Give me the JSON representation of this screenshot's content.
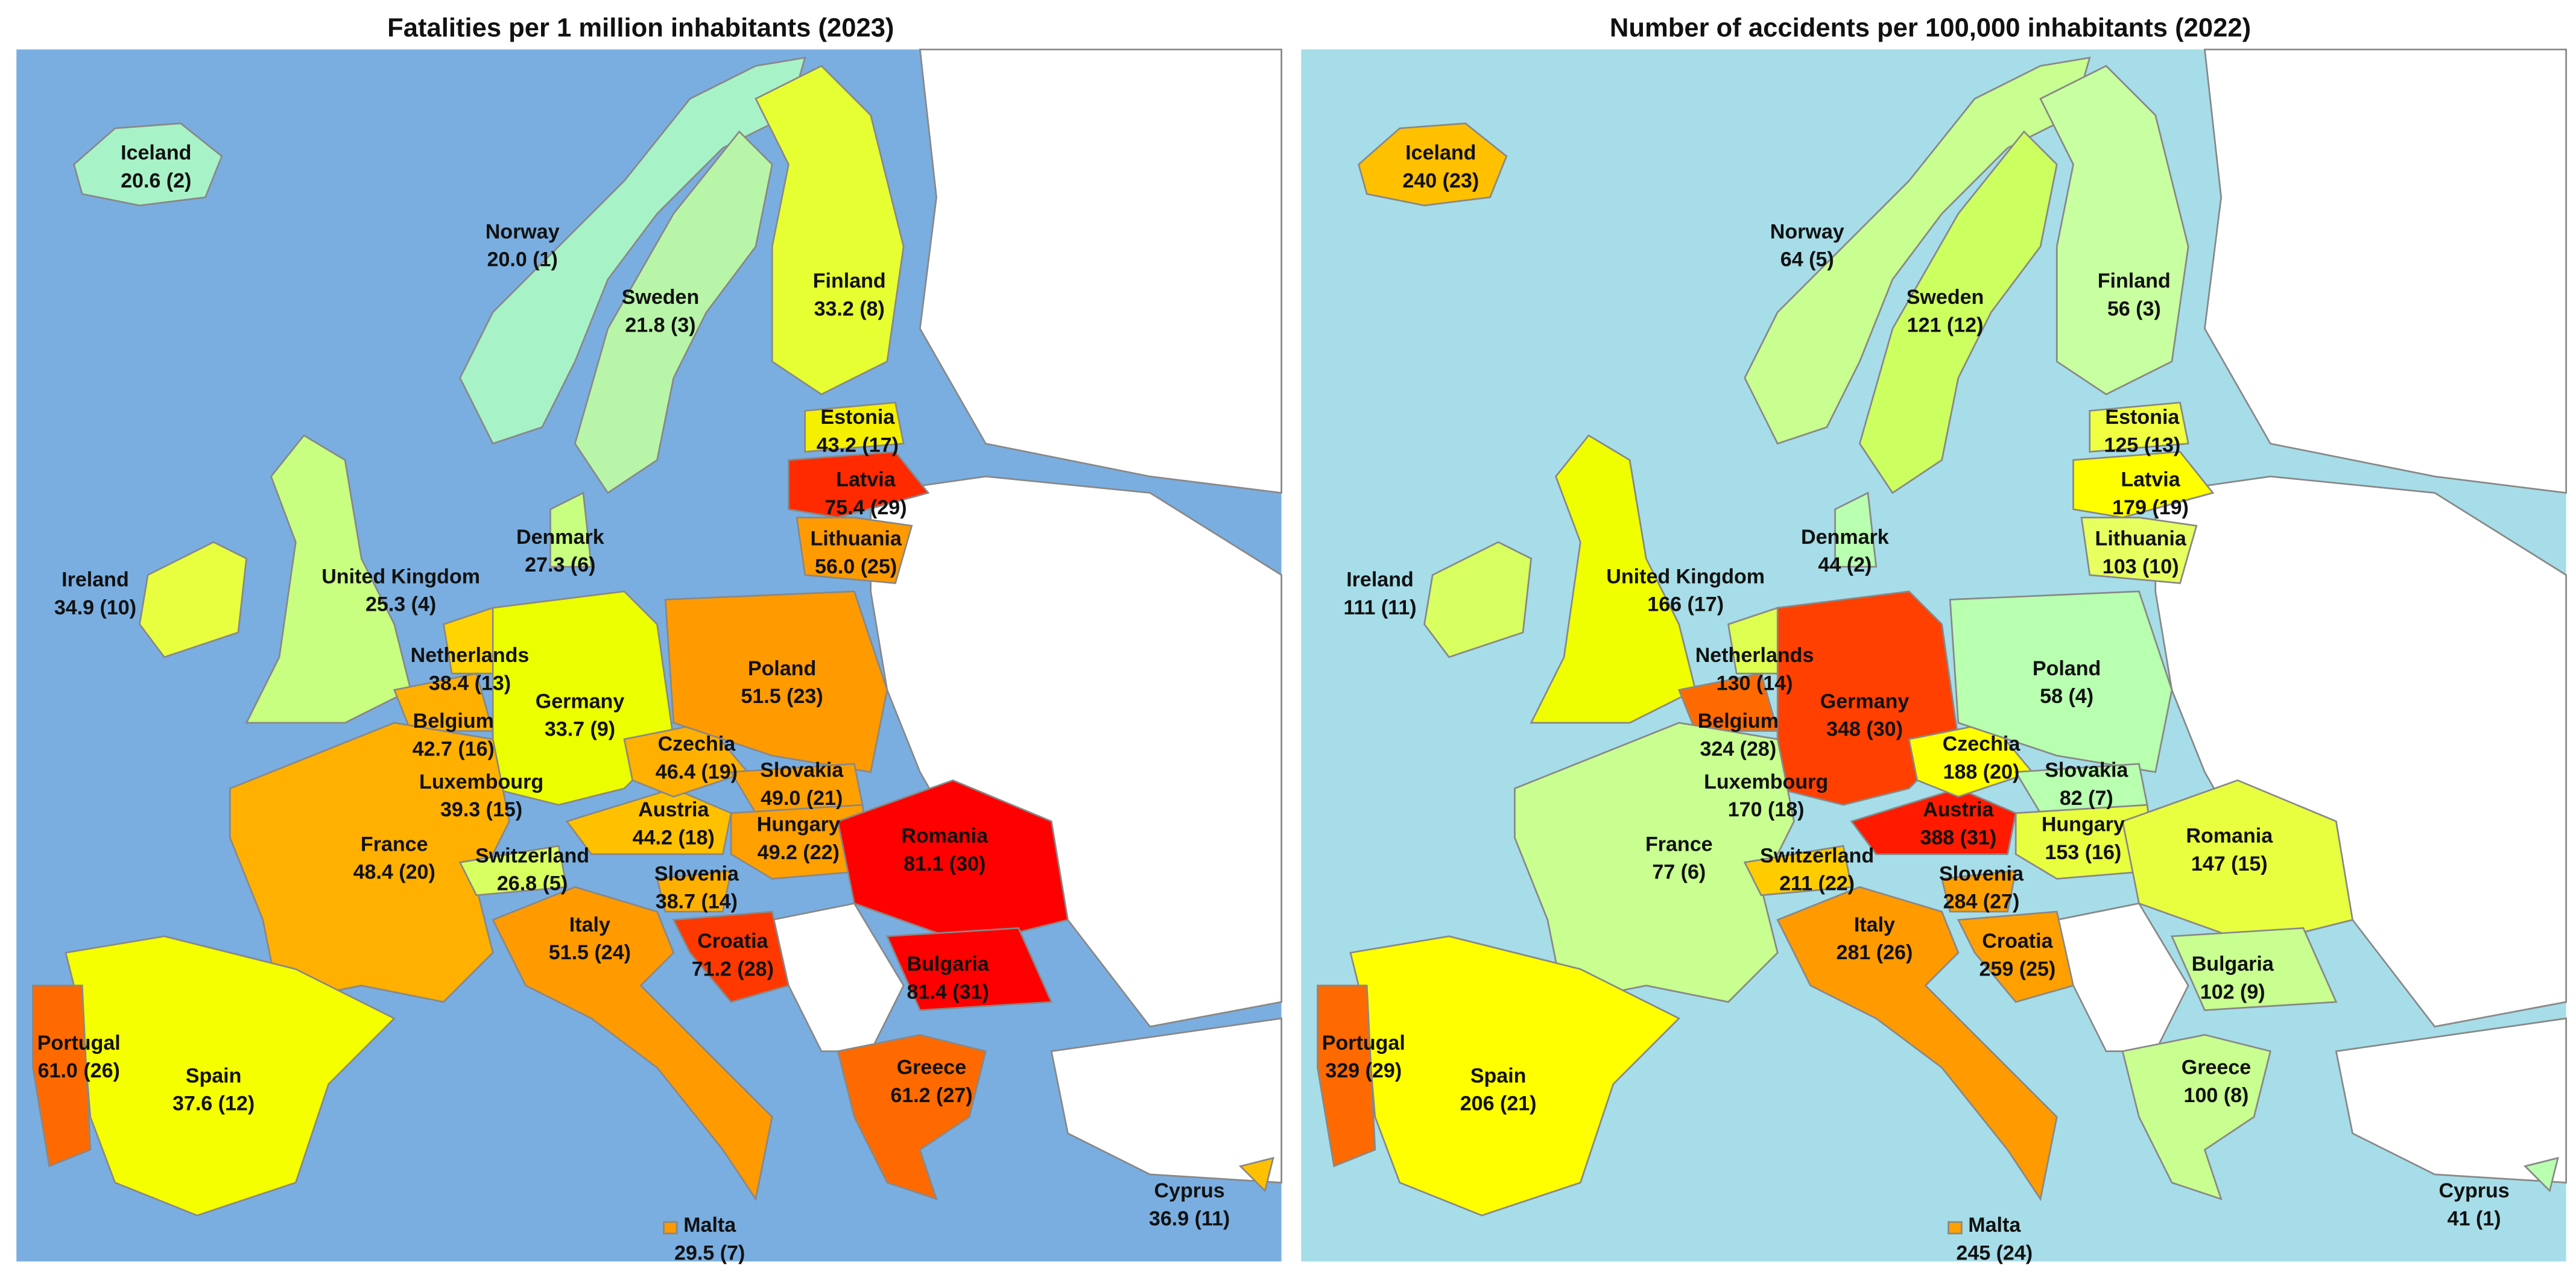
{
  "maps": [
    {
      "title": "Fatalities per 1 million inhabitants (2023)",
      "regions": [
        {
          "name": "Iceland",
          "value": "20.6 (2)",
          "color": "#a8f2c8"
        },
        {
          "name": "Norway",
          "value": "20.0 (1)",
          "color": "#a8f2c8"
        },
        {
          "name": "Sweden",
          "value": "21.8 (3)",
          "color": "#b8f5a8"
        },
        {
          "name": "Finland",
          "value": "33.2 (8)",
          "color": "#e6ff33"
        },
        {
          "name": "Estonia",
          "value": "43.2 (17)",
          "color": "#f5f000"
        },
        {
          "name": "Latvia",
          "value": "75.4 (29)",
          "color": "#ff2a00"
        },
        {
          "name": "Lithuania",
          "value": "56.0 (25)",
          "color": "#ff9a00"
        },
        {
          "name": "Denmark",
          "value": "27.3 (6)",
          "color": "#c8ff80"
        },
        {
          "name": "United Kingdom",
          "value": "25.3 (4)",
          "color": "#c8ff80"
        },
        {
          "name": "Ireland",
          "value": "34.9 (10)",
          "color": "#e8ff40"
        },
        {
          "name": "Netherlands",
          "value": "38.4 (13)",
          "color": "#ffd400"
        },
        {
          "name": "Belgium",
          "value": "42.7 (16)",
          "color": "#ffb000"
        },
        {
          "name": "Luxembourg",
          "value": "39.3 (15)",
          "color": "#ffd000"
        },
        {
          "name": "Germany",
          "value": "33.7 (9)",
          "color": "#ecff00"
        },
        {
          "name": "France",
          "value": "48.4 (20)",
          "color": "#ffb000"
        },
        {
          "name": "Switzerland",
          "value": "26.8 (5)",
          "color": "#d8ff60"
        },
        {
          "name": "Italy",
          "value": "51.5 (24)",
          "color": "#ff9a00"
        },
        {
          "name": "Austria",
          "value": "44.2 (18)",
          "color": "#ffc000"
        },
        {
          "name": "Czechia",
          "value": "46.4 (19)",
          "color": "#ffb000"
        },
        {
          "name": "Poland",
          "value": "51.5 (23)",
          "color": "#ff9a00"
        },
        {
          "name": "Slovakia",
          "value": "49.0 (21)",
          "color": "#ffa000"
        },
        {
          "name": "Hungary",
          "value": "49.2 (22)",
          "color": "#ffa000"
        },
        {
          "name": "Slovenia",
          "value": "38.7 (14)",
          "color": "#ffb000"
        },
        {
          "name": "Croatia",
          "value": "71.2 (28)",
          "color": "#ff3800"
        },
        {
          "name": "Romania",
          "value": "81.1 (30)",
          "color": "#ff0000"
        },
        {
          "name": "Bulgaria",
          "value": "81.4 (31)",
          "color": "#ff0000"
        },
        {
          "name": "Greece",
          "value": "61.2 (27)",
          "color": "#ff6a00"
        },
        {
          "name": "Spain",
          "value": "37.6 (12)",
          "color": "#f5ff00"
        },
        {
          "name": "Portugal",
          "value": "61.0 (26)",
          "color": "#ff6a00"
        },
        {
          "name": "Cyprus",
          "value": "36.9 (11)",
          "color": "#ffc000"
        },
        {
          "name": "Malta",
          "value": "29.5 (7)",
          "color": "#ff9a00"
        }
      ]
    },
    {
      "title": "Number of accidents per 100,000 inhabitants (2022)",
      "regions": [
        {
          "name": "Iceland",
          "value": "240 (23)",
          "color": "#ffc000"
        },
        {
          "name": "Norway",
          "value": "64 (5)",
          "color": "#c8ff90"
        },
        {
          "name": "Sweden",
          "value": "121 (12)",
          "color": "#ccff60"
        },
        {
          "name": "Finland",
          "value": "56 (3)",
          "color": "#c8ffa0"
        },
        {
          "name": "Estonia",
          "value": "125 (13)",
          "color": "#f0ff40"
        },
        {
          "name": "Latvia",
          "value": "179 (19)",
          "color": "#ffff00"
        },
        {
          "name": "Lithuania",
          "value": "103 (10)",
          "color": "#e8ff60"
        },
        {
          "name": "Denmark",
          "value": "44 (2)",
          "color": "#b8ffb0"
        },
        {
          "name": "United Kingdom",
          "value": "166 (17)",
          "color": "#f0ff00"
        },
        {
          "name": "Ireland",
          "value": "111 (11)",
          "color": "#d8ff60"
        },
        {
          "name": "Netherlands",
          "value": "130 (14)",
          "color": "#ddff50"
        },
        {
          "name": "Belgium",
          "value": "324 (28)",
          "color": "#ff6a00"
        },
        {
          "name": "Luxembourg",
          "value": "170 (18)",
          "color": "#ffd400"
        },
        {
          "name": "Germany",
          "value": "348 (30)",
          "color": "#ff4000"
        },
        {
          "name": "France",
          "value": "77 (6)",
          "color": "#c8ff90"
        },
        {
          "name": "Switzerland",
          "value": "211 (22)",
          "color": "#ffcc00"
        },
        {
          "name": "Italy",
          "value": "281 (26)",
          "color": "#ff9a00"
        },
        {
          "name": "Austria",
          "value": "388 (31)",
          "color": "#ff1a00"
        },
        {
          "name": "Czechia",
          "value": "188 (20)",
          "color": "#ffff00"
        },
        {
          "name": "Poland",
          "value": "58 (4)",
          "color": "#b8ffb0"
        },
        {
          "name": "Slovakia",
          "value": "82 (7)",
          "color": "#b8ffb0"
        },
        {
          "name": "Hungary",
          "value": "153 (16)",
          "color": "#e8ff40"
        },
        {
          "name": "Slovenia",
          "value": "284 (27)",
          "color": "#ffa000"
        },
        {
          "name": "Croatia",
          "value": "259 (25)",
          "color": "#ffa000"
        },
        {
          "name": "Romania",
          "value": "147 (15)",
          "color": "#e8ff40"
        },
        {
          "name": "Bulgaria",
          "value": "102 (9)",
          "color": "#c8ff90"
        },
        {
          "name": "Greece",
          "value": "100 (8)",
          "color": "#c8ff90"
        },
        {
          "name": "Spain",
          "value": "206 (21)",
          "color": "#ffff00"
        },
        {
          "name": "Portugal",
          "value": "329 (29)",
          "color": "#ff6a00"
        },
        {
          "name": "Cyprus",
          "value": "41 (1)",
          "color": "#b8ffb0"
        },
        {
          "name": "Malta",
          "value": "245 (24)",
          "color": "#ffa000"
        }
      ]
    }
  ]
}
